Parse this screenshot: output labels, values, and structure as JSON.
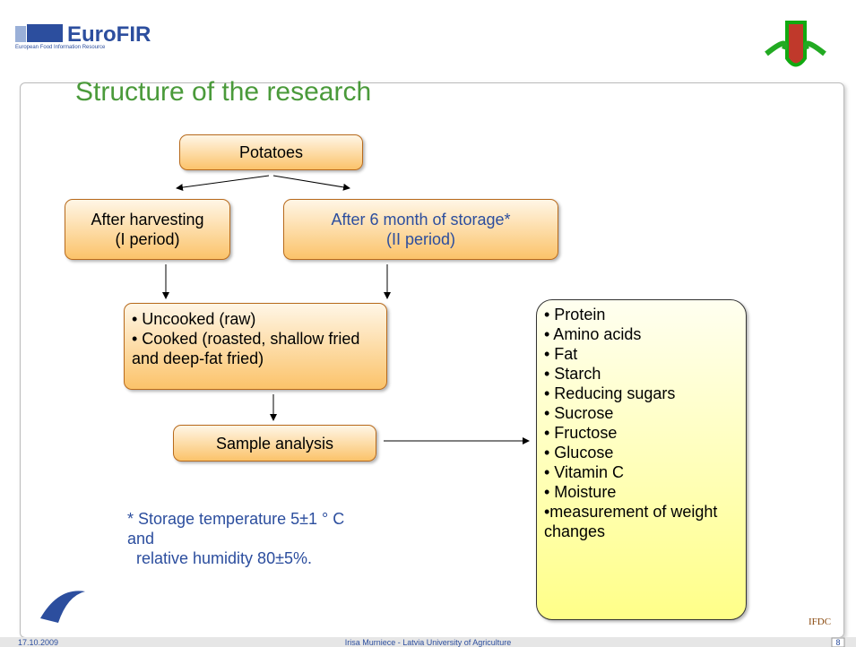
{
  "header": {
    "logo": "EuroFIR",
    "logo_subtitle": "European Food Information Resource"
  },
  "title": "Structure of the research",
  "nodes": [
    {
      "lines": [
        "Potatoes"
      ]
    },
    {
      "lines": [
        "After harvesting",
        "(I period)"
      ]
    },
    {
      "lines": [
        "After 6 month of storage*",
        "(II period)"
      ]
    },
    {
      "lines": [
        "• Uncooked (raw)",
        "• Cooked (roasted, shallow fried and deep-fat fried)"
      ]
    },
    {
      "lines": [
        "Sample analysis"
      ]
    }
  ],
  "analyses": [
    "• Protein",
    "• Amino acids",
    "• Fat",
    "• Starch",
    "• Reducing sugars",
    "• Sucrose",
    "• Fructose",
    "• Glucose",
    "• Vitamin C",
    "• Moisture",
    "•measurement of weight changes"
  ],
  "footnote": [
    "* Storage temperature 5±1 ° C",
    "and",
    "  relative humidity 80±5%."
  ],
  "footer": {
    "date": "17.10.2009",
    "author": "Irisa Murniece - Latvia University of Agriculture",
    "page": "8"
  },
  "ifdc_logo": "IFDC"
}
